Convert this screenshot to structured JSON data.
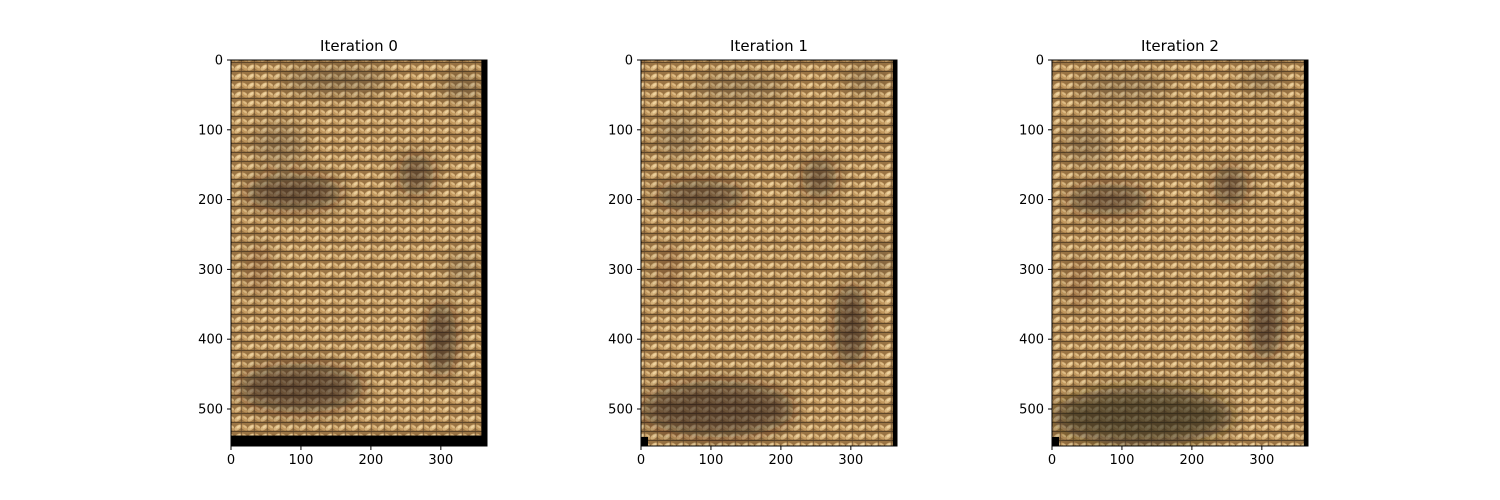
{
  "chart_data": [
    {
      "type": "image",
      "title": "Iteration 0",
      "image_extent": {
        "x": [
          0,
          366
        ],
        "y": [
          0,
          553
        ]
      },
      "xlim": [
        0,
        366
      ],
      "ylim": [
        553,
        0
      ],
      "xticks": [
        0,
        100,
        200,
        300
      ],
      "yticks": [
        0,
        100,
        200,
        300,
        400,
        500
      ],
      "black_border": {
        "right_from_x": 358,
        "bottom_from_y": 538,
        "corner_block": null
      },
      "content": "woven basket texture (tan) with darker shaded facial features"
    },
    {
      "type": "image",
      "title": "Iteration 1",
      "image_extent": {
        "x": [
          0,
          366
        ],
        "y": [
          0,
          553
        ]
      },
      "xlim": [
        0,
        366
      ],
      "ylim": [
        553,
        0
      ],
      "xticks": [
        0,
        100,
        200,
        300
      ],
      "yticks": [
        0,
        100,
        200,
        300,
        400,
        500
      ],
      "black_border": {
        "right_from_x": 360,
        "bottom_from_y": null,
        "corner_block": {
          "x": [
            0,
            10
          ],
          "y": [
            540,
            553
          ]
        }
      },
      "content": "woven basket texture (tan) with darker shaded facial features"
    },
    {
      "type": "image",
      "title": "Iteration 2",
      "image_extent": {
        "x": [
          0,
          366
        ],
        "y": [
          0,
          553
        ]
      },
      "xlim": [
        0,
        366
      ],
      "ylim": [
        553,
        0
      ],
      "xticks": [
        0,
        100,
        200,
        300
      ],
      "yticks": [
        0,
        100,
        200,
        300,
        400,
        500
      ],
      "black_border": {
        "right_from_x": 360,
        "bottom_from_y": null,
        "corner_block": {
          "x": [
            0,
            10
          ],
          "y": [
            540,
            553
          ]
        }
      },
      "content": "woven basket texture (tan) with darker shaded facial features"
    }
  ],
  "colors": {
    "weave_base": "#b08850",
    "weave_light": "#e2c08c",
    "weave_dark": "#6e5230",
    "shadow": "#1e1a16",
    "border": "#000000"
  }
}
